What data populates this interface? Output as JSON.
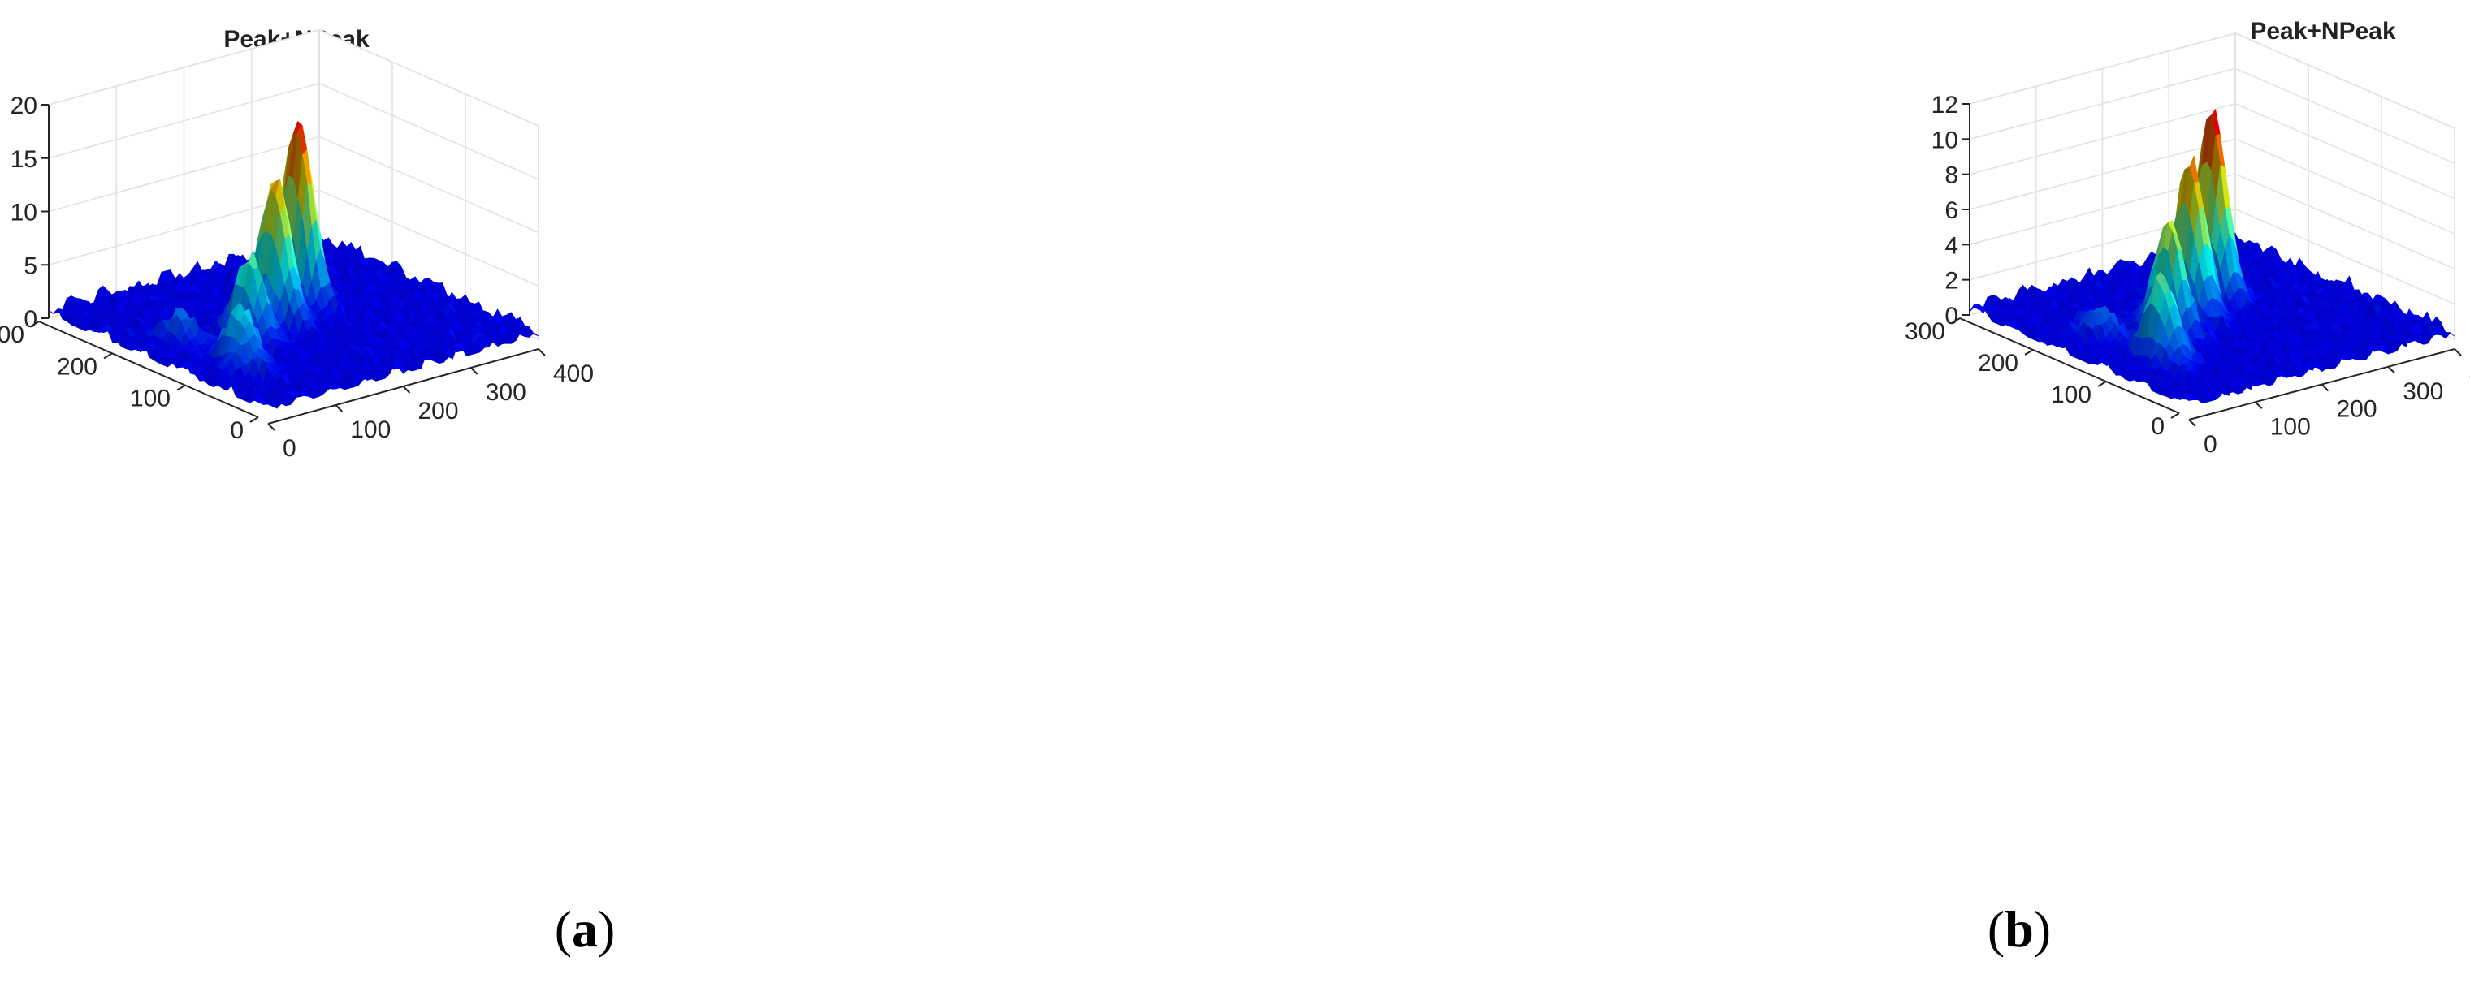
{
  "chart_data": [
    {
      "type": "surface3d",
      "caption": "a",
      "title": "Peak+NPeak",
      "xlim": [
        0,
        400
      ],
      "ylim": [
        0,
        300
      ],
      "zlim": [
        0,
        20
      ],
      "x_ticks": [
        0,
        100,
        200,
        300,
        400
      ],
      "y_ticks": [
        0,
        100,
        200,
        300
      ],
      "z_ticks": [
        0,
        5,
        10,
        15,
        20
      ],
      "colormap": "jet",
      "noise_level": 1.2,
      "peaks": [
        {
          "x": 60,
          "y": 90,
          "z": 5.5
        },
        {
          "x": 125,
          "y": 140,
          "z": 7.5
        },
        {
          "x": 185,
          "y": 160,
          "z": 13.5
        },
        {
          "x": 245,
          "y": 185,
          "z": 17.5
        },
        {
          "x": 55,
          "y": 170,
          "z": 2.5
        }
      ]
    },
    {
      "type": "surface3d",
      "caption": "b",
      "title": "Peak+NPeak",
      "xlim": [
        0,
        400
      ],
      "ylim": [
        0,
        300
      ],
      "zlim": [
        0,
        12
      ],
      "x_ticks": [
        0,
        100,
        200,
        300,
        400
      ],
      "y_ticks": [
        0,
        100,
        200,
        300
      ],
      "z_ticks": [
        0,
        2,
        4,
        6,
        8,
        10,
        12
      ],
      "colormap": "jet",
      "noise_level": 0.7,
      "peaks": [
        {
          "x": 65,
          "y": 95,
          "z": 4.8
        },
        {
          "x": 130,
          "y": 145,
          "z": 6.5
        },
        {
          "x": 190,
          "y": 170,
          "z": 8.8
        },
        {
          "x": 250,
          "y": 195,
          "z": 10.8
        },
        {
          "x": 60,
          "y": 175,
          "z": 1.8
        }
      ]
    }
  ]
}
